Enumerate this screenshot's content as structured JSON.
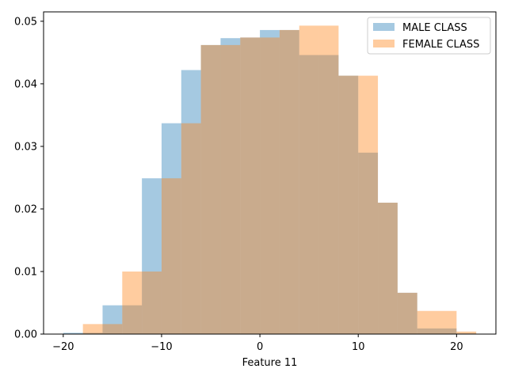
{
  "chart_data": {
    "type": "histogram",
    "title": "",
    "xlabel": "Feature 11",
    "ylabel": "",
    "xlim": [
      -22,
      24
    ],
    "ylim": [
      0,
      0.0515
    ],
    "grid": false,
    "legend_position": "top-right",
    "x_ticks": [
      -20,
      -10,
      0,
      10,
      20
    ],
    "x_tick_labels": [
      "−20",
      "−10",
      "0",
      "10",
      "20"
    ],
    "y_ticks": [
      0.0,
      0.01,
      0.02,
      0.03,
      0.04,
      0.05
    ],
    "y_tick_labels": [
      "0.00",
      "0.01",
      "0.02",
      "0.03",
      "0.04",
      "0.05"
    ],
    "series": [
      {
        "name": "MALE CLASS",
        "color": "#1f77b4",
        "opacity": 0.4,
        "bin_edges": [
          -20,
          -18,
          -16,
          -14,
          -12,
          -10,
          -8,
          -6,
          -4,
          -2,
          0,
          2,
          4,
          6,
          8,
          10,
          12,
          14,
          16,
          18,
          20,
          22
        ],
        "values": [
          0.0002,
          0.0002,
          0.0046,
          0.0046,
          0.0249,
          0.0337,
          0.0422,
          0.0462,
          0.0473,
          0.0474,
          0.0486,
          0.0486,
          0.0446,
          0.0446,
          0.0413,
          0.029,
          0.021,
          0.0066,
          0.0009,
          0.0009,
          0.0001
        ]
      },
      {
        "name": "FEMALE CLASS",
        "color": "#ff7f0e",
        "opacity": 0.4,
        "bin_edges": [
          -18,
          -16,
          -14,
          -12,
          -10,
          -8,
          -6,
          -4,
          -2,
          0,
          2,
          4,
          6,
          8,
          10,
          12,
          14,
          16,
          18,
          20,
          22
        ],
        "values": [
          0.0016,
          0.0016,
          0.01,
          0.01,
          0.0249,
          0.0337,
          0.0462,
          0.0462,
          0.0474,
          0.0474,
          0.0486,
          0.0493,
          0.0493,
          0.0413,
          0.0413,
          0.021,
          0.0066,
          0.0037,
          0.0037,
          0.0004
        ]
      }
    ]
  }
}
